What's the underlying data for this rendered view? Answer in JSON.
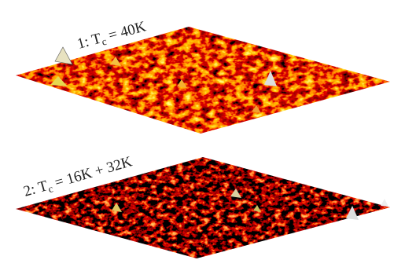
{
  "panels": [
    {
      "label": {
        "prefix": "1: T",
        "subscript": "c",
        "suffix": " = 40K"
      }
    },
    {
      "label": {
        "prefix": "2: T",
        "subscript": "c",
        "suffix": " = 16K + 32K"
      }
    }
  ]
}
